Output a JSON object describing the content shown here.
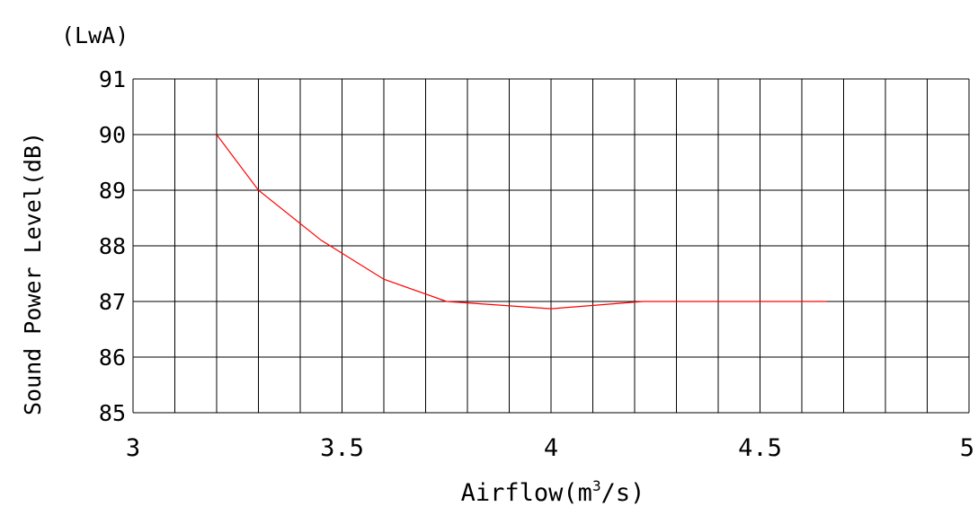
{
  "chart_data": {
    "type": "line",
    "unit_label": "(LwA)",
    "ylabel": "Sound Power Level(dB)",
    "xlabel": {
      "prefix": "Airflow(m",
      "superscript": "3",
      "suffix": "/s)"
    },
    "xlim": [
      3,
      5
    ],
    "ylim": [
      85,
      91
    ],
    "x_ticks": [
      3,
      3.5,
      4,
      4.5,
      5
    ],
    "x_tick_labels": [
      "3",
      "3.5",
      "4",
      "4.5",
      "5"
    ],
    "y_ticks": [
      85,
      86,
      87,
      88,
      89,
      90,
      91
    ],
    "y_tick_labels": [
      "85",
      "86",
      "87",
      "88",
      "89",
      "90",
      "91"
    ],
    "grid": true,
    "grid_x_divisions": 20,
    "series": [
      {
        "color": "#ff0000",
        "x": [
          3.2,
          3.3,
          3.45,
          3.6,
          3.75,
          4.0,
          4.22,
          4.35,
          4.55,
          4.66
        ],
        "y": [
          90.0,
          89.0,
          88.1,
          87.4,
          87.0,
          86.87,
          87.0,
          87.0,
          87.0,
          87.0
        ]
      }
    ]
  }
}
